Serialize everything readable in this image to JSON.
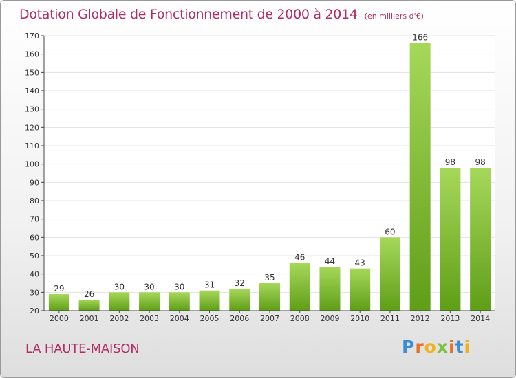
{
  "header": {
    "title": "Dotation Globale de Fonctionnement de 2000 à 2014",
    "unit": "(en milliers d'€)"
  },
  "commune": "LA HAUTE-MAISON",
  "logo": {
    "text": "Proxiti"
  },
  "colors": {
    "title": "#b22d64",
    "bar_top": "#a6d85a",
    "bar_bottom": "#5f9e17",
    "grid": "#e3e3e3",
    "axis": "#444444"
  },
  "chart_data": {
    "type": "bar",
    "title": "Dotation Globale de Fonctionnement de 2000 à 2014",
    "subtitle": "(en milliers d'€)",
    "xlabel": "",
    "ylabel": "",
    "categories": [
      "2000",
      "2001",
      "2002",
      "2003",
      "2004",
      "2005",
      "2006",
      "2007",
      "2008",
      "2009",
      "2010",
      "2011",
      "2012",
      "2013",
      "2014"
    ],
    "values": [
      29,
      26,
      30,
      30,
      30,
      31,
      32,
      35,
      46,
      44,
      43,
      60,
      166,
      98,
      98
    ],
    "ylim": [
      20,
      170
    ],
    "yticks": [
      20,
      30,
      40,
      50,
      60,
      70,
      80,
      90,
      100,
      110,
      120,
      130,
      140,
      150,
      160,
      170
    ],
    "grid": true,
    "data_labels": true
  }
}
